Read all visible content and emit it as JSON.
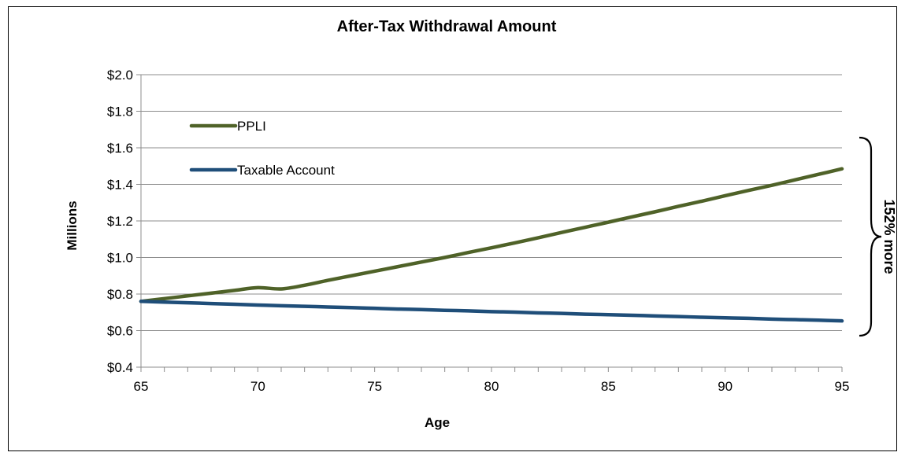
{
  "chart_data": {
    "type": "line",
    "title": "After-Tax Withdrawal Amount",
    "xlabel": "Age",
    "ylabel": "Millions",
    "xlim": [
      65,
      95
    ],
    "ylim": [
      0.4,
      2.0
    ],
    "x_ticks": [
      65,
      70,
      75,
      80,
      85,
      90,
      95
    ],
    "x_tick_labels": [
      "65",
      "70",
      "75",
      "80",
      "85",
      "90",
      "95"
    ],
    "y_ticks": [
      0.4,
      0.6,
      0.8,
      1.0,
      1.2,
      1.4,
      1.6,
      1.8,
      2.0
    ],
    "y_tick_labels": [
      "$0.4",
      "$0.6",
      "$0.8",
      "$1.0",
      "$1.2",
      "$1.4",
      "$1.6",
      "$1.8",
      "$2.0"
    ],
    "grid": true,
    "legend_position": "top-left",
    "series": [
      {
        "name": "PPLI",
        "color": "#4F6228",
        "x": [
          65,
          66,
          67,
          68,
          69,
          70,
          71,
          72,
          73,
          74,
          75,
          76,
          77,
          78,
          79,
          80,
          81,
          82,
          83,
          84,
          85,
          86,
          87,
          88,
          89,
          90,
          91,
          92,
          93,
          94,
          95
        ],
        "values": [
          0.76,
          0.775,
          0.79,
          0.805,
          0.82,
          0.835,
          0.828,
          0.848,
          0.875,
          0.9,
          0.925,
          0.95,
          0.975,
          1.0,
          1.027,
          1.053,
          1.08,
          1.108,
          1.137,
          1.165,
          1.193,
          1.222,
          1.25,
          1.28,
          1.308,
          1.338,
          1.367,
          1.395,
          1.425,
          1.455,
          1.485
        ]
      },
      {
        "name": "Taxable Account",
        "color": "#1F4E79",
        "x": [
          65,
          66,
          67,
          68,
          69,
          70,
          71,
          72,
          73,
          74,
          75,
          76,
          77,
          78,
          79,
          80,
          81,
          82,
          83,
          84,
          85,
          86,
          87,
          88,
          89,
          90,
          91,
          92,
          93,
          94,
          95
        ],
        "values": [
          0.76,
          0.756,
          0.752,
          0.748,
          0.744,
          0.74,
          0.736,
          0.733,
          0.729,
          0.726,
          0.722,
          0.718,
          0.715,
          0.711,
          0.708,
          0.704,
          0.701,
          0.697,
          0.694,
          0.69,
          0.687,
          0.684,
          0.68,
          0.677,
          0.673,
          0.67,
          0.667,
          0.663,
          0.66,
          0.657,
          0.653
        ]
      }
    ],
    "annotations": [
      {
        "text": "152% more"
      }
    ]
  }
}
